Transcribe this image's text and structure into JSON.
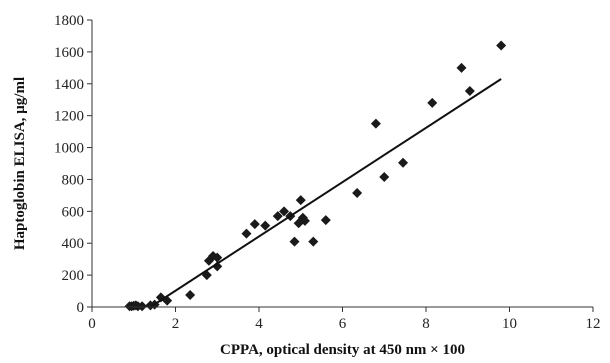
{
  "chart_data": {
    "type": "scatter",
    "title": "",
    "xlabel": "CPPA, optical density at 450 nm × 100",
    "ylabel": "Haptoglobin ELISA, µg/ml",
    "xlim": [
      0,
      12
    ],
    "ylim": [
      0,
      1800
    ],
    "x_ticks": [
      "0",
      "2",
      "4",
      "6",
      "8",
      "10",
      "12"
    ],
    "y_ticks": [
      "0",
      "200",
      "400",
      "600",
      "800",
      "1000",
      "1200",
      "1400",
      "1600",
      "1800"
    ],
    "grid": false,
    "legend": "none",
    "marker_color": "#1a1a1a",
    "series": [
      {
        "marker": "diamond",
        "x": [
          0.9,
          0.95,
          1.0,
          1.05,
          1.1,
          1.2,
          1.4,
          1.5,
          1.65,
          1.8,
          2.35,
          2.75,
          2.8,
          2.9,
          3.0,
          3.0,
          3.7,
          3.9,
          4.15,
          4.45,
          4.6,
          4.75,
          4.85,
          4.95,
          5.0,
          5.05,
          5.1,
          5.3,
          5.6,
          6.35,
          6.8,
          7.0,
          7.45,
          8.15,
          8.85,
          9.05,
          9.8
        ],
        "y": [
          5,
          5,
          8,
          10,
          5,
          5,
          10,
          15,
          60,
          40,
          75,
          200,
          290,
          320,
          255,
          310,
          460,
          520,
          510,
          570,
          600,
          570,
          410,
          525,
          670,
          560,
          540,
          410,
          545,
          715,
          1150,
          815,
          905,
          1280,
          1500,
          1355,
          1640
        ]
      }
    ],
    "trendline": {
      "x": [
        1.4,
        9.8
      ],
      "y": [
        0,
        1430
      ]
    }
  }
}
